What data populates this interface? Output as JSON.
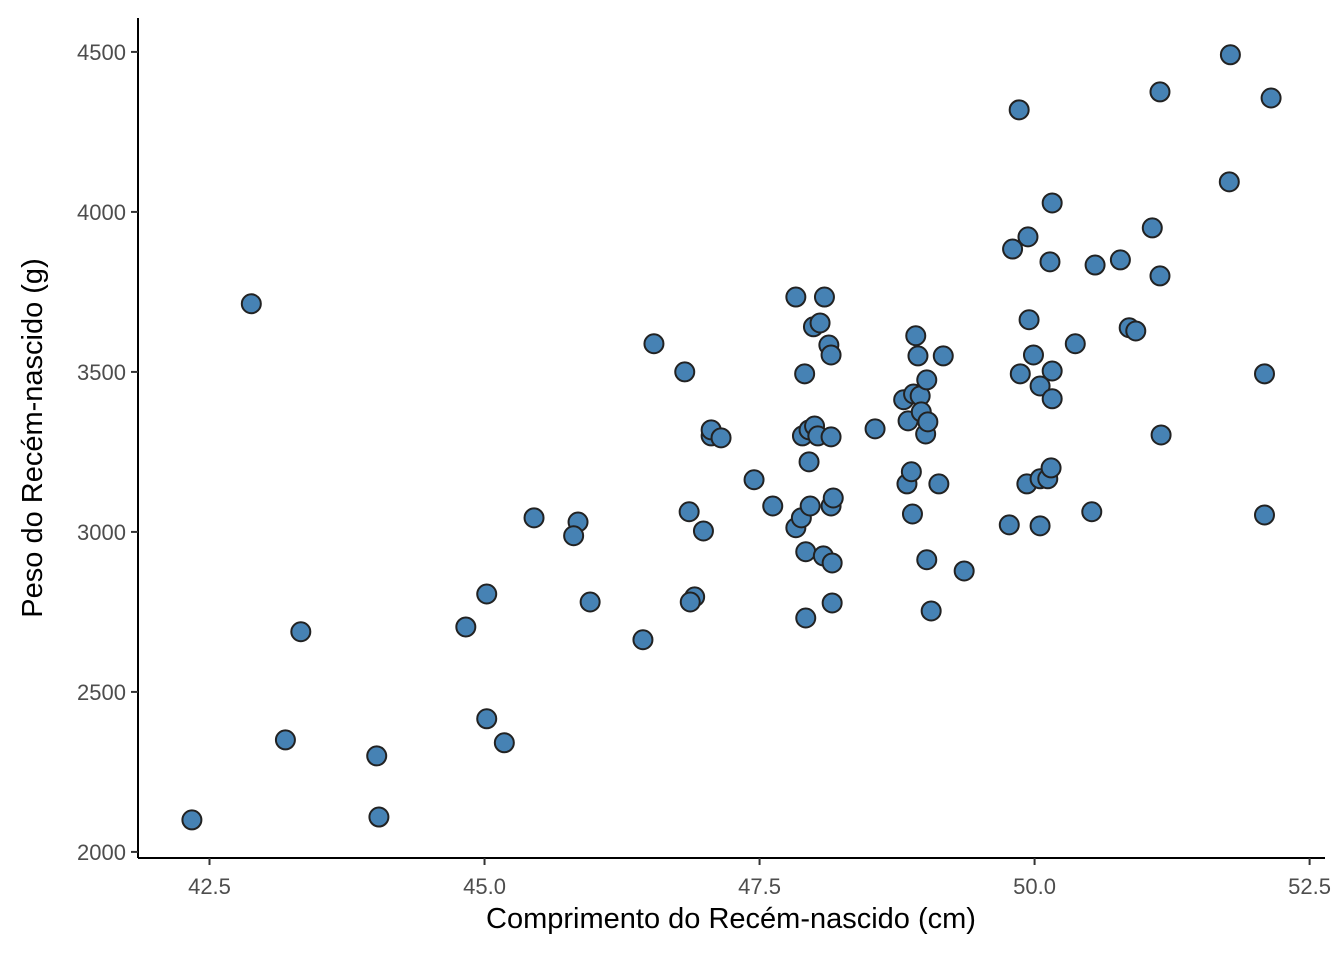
{
  "chart_data": {
    "type": "scatter",
    "x_label": "Comprimento do Recém-nascido (cm)",
    "y_label": "Peso do Recém-nascido (g)",
    "color": "#4682b4",
    "xlim": [
      41.85,
      52.64
    ],
    "ylim": [
      1981,
      4606
    ],
    "xticks": [
      42.5,
      {
        "value": 45,
        "label": "45.0"
      },
      47.5,
      {
        "value": 50,
        "label": "50.0"
      },
      52.5
    ],
    "yticks": [
      2000,
      2500,
      3000,
      3500,
      4000,
      4500
    ],
    "grid": false,
    "x": [
      42.34,
      42.88,
      43.33,
      43.19,
      44.02,
      44.04,
      44.83,
      45.02,
      45.02,
      45.18,
      45.45,
      45.85,
      45.81,
      45.96,
      46.44,
      46.54,
      46.82,
      46.86,
      46.91,
      46.87,
      46.99,
      47.06,
      47.06,
      47.15,
      47.45,
      47.62,
      47.83,
      47.83,
      47.91,
      47.89,
      47.92,
      47.92,
      47.95,
      47.95,
      47.88,
      47.96,
      47.99,
      48.0,
      48.05,
      48.09,
      48.03,
      48.08,
      48.13,
      48.15,
      48.15,
      48.15,
      48.17,
      48.16,
      48.16,
      48.55,
      48.81,
      48.84,
      48.85,
      48.88,
      48.89,
      48.92,
      48.94,
      48.9,
      48.96,
      48.97,
      49.02,
      49.01,
      49.03,
      49.02,
      49.06,
      49.13,
      49.17,
      49.36,
      49.77,
      49.8,
      49.86,
      49.87,
      49.94,
      49.93,
      49.95,
      49.99,
      50.05,
      50.05,
      50.05,
      50.12,
      50.14,
      50.16,
      50.16,
      50.16,
      50.15,
      50.37,
      50.52,
      50.55,
      50.78,
      50.86,
      50.92,
      51.07,
      51.14,
      51.14,
      51.15,
      51.77,
      51.78,
      52.09,
      52.09,
      52.15
    ],
    "values": [
      2100,
      3713,
      2688,
      2350,
      2300,
      2109,
      2703,
      2806,
      2416,
      2341,
      3044,
      3031,
      2988,
      2781,
      2663,
      3588,
      3500,
      3063,
      2797,
      2781,
      3003,
      3300,
      3319,
      3294,
      3163,
      3081,
      3734,
      3013,
      3494,
      3300,
      2938,
      2731,
      3219,
      3319,
      3044,
      3081,
      3641,
      3331,
      3653,
      3734,
      3300,
      2925,
      3584,
      3553,
      3297,
      3081,
      3106,
      2903,
      2778,
      3322,
      3413,
      3150,
      3347,
      3188,
      3056,
      3613,
      3550,
      3431,
      3425,
      3375,
      3475,
      3306,
      3344,
      2913,
      2753,
      3150,
      3550,
      2878,
      3022,
      3884,
      4319,
      3494,
      3922,
      3150,
      3663,
      3553,
      3456,
      3166,
      3019,
      3166,
      3844,
      4028,
      3503,
      3416,
      3200,
      3588,
      3063,
      3834,
      3850,
      3638,
      3628,
      3950,
      4375,
      3800,
      3303,
      4094,
      4491,
      3494,
      3053,
      4356
    ]
  }
}
